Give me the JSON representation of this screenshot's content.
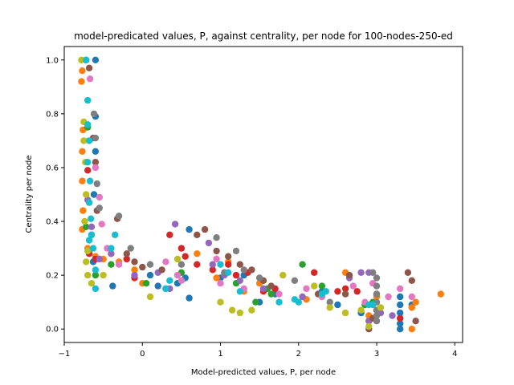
{
  "chart_data": {
    "type": "scatter",
    "title": "model-predicated values, P, against centrality, per node for 100-nodes-250-ed",
    "xlabel": "Model-predicted values, P, per node",
    "ylabel": "Centrality per node",
    "xlim": [
      -1.0,
      4.1
    ],
    "ylim": [
      -0.05,
      1.05
    ],
    "xticks": [
      -1,
      0,
      1,
      2,
      3,
      4
    ],
    "xtick_labels": [
      "−1",
      "0",
      "1",
      "2",
      "3",
      "4"
    ],
    "yticks": [
      0.0,
      0.2,
      0.4,
      0.6,
      0.8,
      1.0
    ],
    "ytick_labels": [
      "0.0",
      "0.2",
      "0.4",
      "0.6",
      "0.8",
      "1.0"
    ],
    "grid": false,
    "legend": "none",
    "colors": [
      "#1f77b4",
      "#ff7f0e",
      "#2ca02c",
      "#d62728",
      "#9467bd",
      "#8c564b",
      "#e377c2",
      "#7f7f7f",
      "#bcbd22",
      "#17becf"
    ],
    "series": [
      {
        "color": "#1f77b4",
        "points": [
          [
            -0.6,
            1.0
          ],
          [
            -0.6,
            0.79
          ],
          [
            -0.6,
            0.66
          ],
          [
            -0.62,
            0.5
          ],
          [
            -0.65,
            0.35
          ],
          [
            -0.63,
            0.25
          ],
          [
            -0.38,
            0.16
          ],
          [
            0.1,
            0.2
          ],
          [
            0.2,
            0.16
          ],
          [
            0.3,
            0.15
          ],
          [
            0.45,
            0.17
          ],
          [
            0.55,
            0.19
          ],
          [
            0.6,
            0.115
          ],
          [
            0.6,
            0.37
          ],
          [
            1.0,
            0.19
          ],
          [
            1.3,
            0.2
          ],
          [
            1.5,
            0.1
          ],
          [
            1.7,
            0.13
          ],
          [
            2.3,
            0.14
          ],
          [
            2.5,
            0.09
          ],
          [
            2.8,
            0.06
          ],
          [
            2.9,
            0.03
          ],
          [
            3.0,
            0.07
          ],
          [
            3.3,
            0.0
          ],
          [
            3.3,
            0.02
          ],
          [
            3.3,
            0.04
          ],
          [
            3.3,
            0.06
          ],
          [
            3.3,
            0.09
          ],
          [
            3.3,
            0.12
          ],
          [
            3.45,
            0.09
          ]
        ]
      },
      {
        "color": "#ff7f0e",
        "points": [
          [
            -0.78,
            0.92
          ],
          [
            -0.77,
            0.96
          ],
          [
            -0.76,
            0.74
          ],
          [
            -0.77,
            0.66
          ],
          [
            -0.77,
            0.55
          ],
          [
            -0.76,
            0.44
          ],
          [
            -0.77,
            0.37
          ],
          [
            -0.7,
            0.3
          ],
          [
            -0.6,
            0.27
          ],
          [
            -0.5,
            0.26
          ],
          [
            -0.4,
            0.28
          ],
          [
            -0.3,
            0.25
          ],
          [
            -0.1,
            0.22
          ],
          [
            0.0,
            0.17
          ],
          [
            0.7,
            0.28
          ],
          [
            0.95,
            0.19
          ],
          [
            1.1,
            0.25
          ],
          [
            1.3,
            0.14
          ],
          [
            1.5,
            0.17
          ],
          [
            2.1,
            0.11
          ],
          [
            2.6,
            0.21
          ],
          [
            2.9,
            0.05
          ],
          [
            3.0,
            0.12
          ],
          [
            3.45,
            0.08
          ],
          [
            3.5,
            0.1
          ],
          [
            3.82,
            0.13
          ],
          [
            3.45,
            0.0
          ]
        ]
      },
      {
        "color": "#2ca02c",
        "points": [
          [
            -0.72,
            1.0
          ],
          [
            -0.7,
            0.75
          ],
          [
            -0.72,
            0.38
          ],
          [
            -0.6,
            0.2
          ],
          [
            -0.4,
            0.24
          ],
          [
            0.05,
            0.17
          ],
          [
            0.5,
            0.21
          ],
          [
            1.2,
            0.17
          ],
          [
            1.45,
            0.1
          ],
          [
            1.6,
            0.15
          ],
          [
            1.65,
            0.13
          ],
          [
            2.05,
            0.24
          ],
          [
            2.3,
            0.16
          ],
          [
            2.85,
            0.09
          ],
          [
            2.95,
            0.1
          ]
        ]
      },
      {
        "color": "#d62728",
        "points": [
          [
            -0.7,
            0.59
          ],
          [
            -0.68,
            0.28
          ],
          [
            -0.6,
            0.26
          ],
          [
            -0.2,
            0.26
          ],
          [
            -0.1,
            0.19
          ],
          [
            0.35,
            0.35
          ],
          [
            0.5,
            0.3
          ],
          [
            0.55,
            0.27
          ],
          [
            0.7,
            0.24
          ],
          [
            0.9,
            0.22
          ],
          [
            1.1,
            0.24
          ],
          [
            1.2,
            0.2
          ],
          [
            1.35,
            0.21
          ],
          [
            1.55,
            0.14
          ],
          [
            1.7,
            0.15
          ],
          [
            2.2,
            0.21
          ],
          [
            2.5,
            0.14
          ],
          [
            2.6,
            0.15
          ],
          [
            2.75,
            0.14
          ],
          [
            3.0,
            0.13
          ],
          [
            3.3,
            0.04
          ]
        ]
      },
      {
        "color": "#9467bd",
        "points": [
          [
            -0.7,
            0.48
          ],
          [
            -0.65,
            0.38
          ],
          [
            -0.55,
            0.26
          ],
          [
            -0.4,
            0.28
          ],
          [
            -0.1,
            0.2
          ],
          [
            0.2,
            0.21
          ],
          [
            0.35,
            0.15
          ],
          [
            0.42,
            0.39
          ],
          [
            0.85,
            0.32
          ],
          [
            0.9,
            0.24
          ],
          [
            1.05,
            0.2
          ],
          [
            1.25,
            0.18
          ],
          [
            1.55,
            0.15
          ],
          [
            2.05,
            0.12
          ],
          [
            2.65,
            0.19
          ],
          [
            2.8,
            0.21
          ],
          [
            2.9,
            0.21
          ],
          [
            2.9,
            0.03
          ],
          [
            3.05,
            0.06
          ],
          [
            3.2,
            0.05
          ]
        ]
      },
      {
        "color": "#8c564b",
        "points": [
          [
            -0.68,
            0.97
          ],
          [
            -0.63,
            0.71
          ],
          [
            -0.6,
            0.62
          ],
          [
            -0.58,
            0.44
          ],
          [
            -0.32,
            0.41
          ],
          [
            -0.2,
            0.28
          ],
          [
            -0.1,
            0.25
          ],
          [
            0.0,
            0.23
          ],
          [
            0.25,
            0.22
          ],
          [
            0.7,
            0.35
          ],
          [
            0.8,
            0.37
          ],
          [
            0.95,
            0.29
          ],
          [
            1.05,
            0.21
          ],
          [
            1.1,
            0.27
          ],
          [
            1.25,
            0.24
          ],
          [
            1.4,
            0.22
          ],
          [
            1.55,
            0.18
          ],
          [
            1.65,
            0.16
          ],
          [
            2.25,
            0.13
          ],
          [
            2.6,
            0.13
          ],
          [
            2.65,
            0.2
          ],
          [
            2.9,
            0.0
          ],
          [
            2.95,
            0.04
          ],
          [
            3.4,
            0.21
          ],
          [
            3.45,
            0.18
          ],
          [
            3.5,
            0.03
          ]
        ]
      },
      {
        "color": "#e377c2",
        "points": [
          [
            -0.67,
            0.93
          ],
          [
            -0.6,
            0.6
          ],
          [
            -0.55,
            0.49
          ],
          [
            -0.52,
            0.39
          ],
          [
            -0.45,
            0.3
          ],
          [
            -0.3,
            0.24
          ],
          [
            0.3,
            0.25
          ],
          [
            0.45,
            0.2
          ],
          [
            0.5,
            0.18
          ],
          [
            0.95,
            0.26
          ],
          [
            1.0,
            0.17
          ],
          [
            1.3,
            0.15
          ],
          [
            1.75,
            0.13
          ],
          [
            2.1,
            0.15
          ],
          [
            2.3,
            0.12
          ],
          [
            2.7,
            0.16
          ],
          [
            2.95,
            0.17
          ],
          [
            3.15,
            0.12
          ],
          [
            3.3,
            0.15
          ],
          [
            3.45,
            0.12
          ],
          [
            2.85,
            0.1
          ]
        ]
      },
      {
        "color": "#7f7f7f",
        "points": [
          [
            -0.62,
            0.8
          ],
          [
            -0.6,
            0.71
          ],
          [
            -0.58,
            0.54
          ],
          [
            -0.55,
            0.45
          ],
          [
            -0.3,
            0.42
          ],
          [
            -0.15,
            0.3
          ],
          [
            0.1,
            0.24
          ],
          [
            0.5,
            0.24
          ],
          [
            0.95,
            0.34
          ],
          [
            1.05,
            0.21
          ],
          [
            1.2,
            0.29
          ],
          [
            1.3,
            0.22
          ],
          [
            1.5,
            0.19
          ],
          [
            1.95,
            0.18
          ],
          [
            2.4,
            0.1
          ],
          [
            2.95,
            0.21
          ],
          [
            3.0,
            0.19
          ],
          [
            3.0,
            0.16
          ],
          [
            3.0,
            0.13
          ],
          [
            3.0,
            0.1
          ],
          [
            3.0,
            0.07
          ],
          [
            3.0,
            0.05
          ],
          [
            3.0,
            0.03
          ]
        ]
      },
      {
        "color": "#bcbd22",
        "points": [
          [
            -0.78,
            1.0
          ],
          [
            -0.75,
            0.77
          ],
          [
            -0.75,
            0.7
          ],
          [
            -0.73,
            0.62
          ],
          [
            -0.72,
            0.5
          ],
          [
            -0.74,
            0.4
          ],
          [
            -0.7,
            0.29
          ],
          [
            -0.72,
            0.25
          ],
          [
            -0.7,
            0.2
          ],
          [
            -0.65,
            0.17
          ],
          [
            -0.5,
            0.2
          ],
          [
            0.1,
            0.12
          ],
          [
            0.45,
            0.26
          ],
          [
            1.0,
            0.1
          ],
          [
            1.15,
            0.07
          ],
          [
            1.25,
            0.06
          ],
          [
            1.4,
            0.07
          ],
          [
            1.8,
            0.2
          ],
          [
            2.2,
            0.16
          ],
          [
            2.4,
            0.08
          ],
          [
            2.6,
            0.06
          ],
          [
            2.8,
            0.07
          ],
          [
            2.9,
            0.01
          ],
          [
            3.05,
            0.08
          ]
        ]
      },
      {
        "color": "#17becf",
        "points": [
          [
            -0.72,
            1.0
          ],
          [
            -0.7,
            0.85
          ],
          [
            -0.7,
            0.76
          ],
          [
            -0.68,
            0.7
          ],
          [
            -0.7,
            0.62
          ],
          [
            -0.67,
            0.55
          ],
          [
            -0.68,
            0.47
          ],
          [
            -0.66,
            0.41
          ],
          [
            -0.65,
            0.35
          ],
          [
            -0.68,
            0.33
          ],
          [
            -0.63,
            0.3
          ],
          [
            -0.6,
            0.22
          ],
          [
            -0.6,
            0.15
          ],
          [
            -0.4,
            0.3
          ],
          [
            -0.35,
            0.35
          ],
          [
            0.3,
            0.15
          ],
          [
            0.35,
            0.18
          ],
          [
            1.0,
            0.24
          ],
          [
            1.1,
            0.21
          ],
          [
            1.25,
            0.14
          ],
          [
            1.75,
            0.1
          ],
          [
            1.95,
            0.11
          ],
          [
            2.0,
            0.1
          ],
          [
            2.3,
            0.13
          ],
          [
            2.35,
            0.14
          ],
          [
            2.9,
            0.09
          ],
          [
            2.95,
            0.09
          ]
        ]
      }
    ]
  }
}
